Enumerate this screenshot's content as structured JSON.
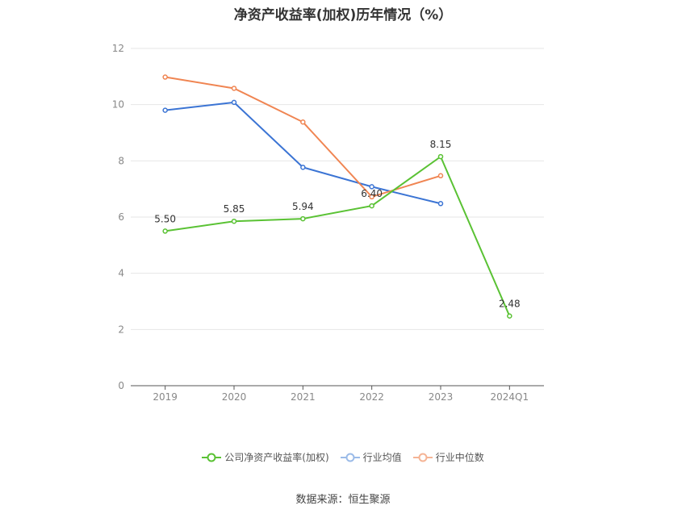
{
  "chart_data": {
    "type": "line",
    "title": "净资产收益率(加权)历年情况（%）",
    "categories": [
      "2019",
      "2020",
      "2021",
      "2022",
      "2023",
      "2024Q1"
    ],
    "ylim": [
      0,
      12
    ],
    "yticks": [
      0,
      2,
      4,
      6,
      8,
      10,
      12
    ],
    "grid": true,
    "legend_position": "bottom",
    "series": [
      {
        "name": "公司净资产收益率(加权)",
        "color": "#5ac234",
        "values": [
          5.5,
          5.85,
          5.94,
          6.4,
          8.15,
          2.48
        ],
        "labels": [
          "5.50",
          "5.85",
          "5.94",
          "6.40",
          "8.15",
          "2.48"
        ]
      },
      {
        "name": "行业均值",
        "color": "#3b74d4",
        "values": [
          9.8,
          10.08,
          7.77,
          7.08,
          6.48,
          null
        ]
      },
      {
        "name": "行业中位数",
        "color": "#f08552",
        "values": [
          10.98,
          10.58,
          9.38,
          6.72,
          7.47,
          null
        ]
      }
    ]
  },
  "source": "数据来源：恒生聚源"
}
